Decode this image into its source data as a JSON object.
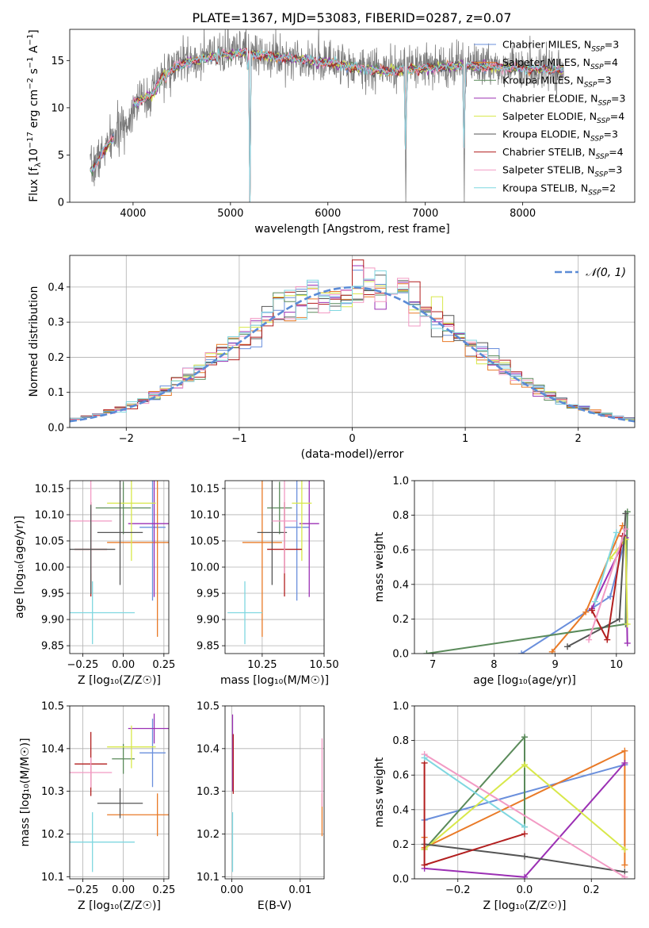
{
  "figure_title": "PLATE=1367, MJD=53083, FIBERID=0287, z=0.07",
  "colors": [
    "#6a8fdc",
    "#e97a27",
    "#5a8a5a",
    "#9b30b4",
    "#d8e84a",
    "#555555",
    "#b21e1e",
    "#f29ac4",
    "#7fd7e0"
  ],
  "chart_data": [
    {
      "id": "spectrum",
      "type": "line",
      "title": "PLATE=1367, MJD=53083, FIBERID=0287, z=0.07",
      "xlabel": "wavelength [Angstrom, rest frame]",
      "ylabel_main": "Flux [f",
      "ylabel_sub": "λ",
      "ylabel_mid": "10",
      "ylabel_sup1": "−17",
      "ylabel_rest1": " erg cm",
      "ylabel_sup2": "−2",
      "ylabel_rest2": " s",
      "ylabel_sup3": "−1",
      "ylabel_rest3": " A",
      "ylabel_sup4": "−1",
      "ylabel_end": "]",
      "xlim": [
        3350,
        9150
      ],
      "ylim": [
        0,
        18.3
      ],
      "xticks": [
        4000,
        5000,
        6000,
        7000,
        8000
      ],
      "yticks": [
        0,
        5,
        10,
        15
      ],
      "legend_position": "upper-right",
      "legend": [
        {
          "base": "Chabrier MILES, N",
          "sub": "SSP",
          "tail": "=3"
        },
        {
          "base": "Salpeter MILES, N",
          "sub": "SSP",
          "tail": "=4"
        },
        {
          "base": "Kroupa MILES, N",
          "sub": "SSP",
          "tail": "=3"
        },
        {
          "base": "Chabrier ELODIE, N",
          "sub": "SSP",
          "tail": "=3"
        },
        {
          "base": "Salpeter ELODIE, N",
          "sub": "SSP",
          "tail": "=4"
        },
        {
          "base": "Kroupa ELODIE, N",
          "sub": "SSP",
          "tail": "=3"
        },
        {
          "base": "Chabrier STELIB, N",
          "sub": "SSP",
          "tail": "=4"
        },
        {
          "base": "Salpeter STELIB, N",
          "sub": "SSP",
          "tail": "=3"
        },
        {
          "base": "Kroupa STELIB, N",
          "sub": "SSP",
          "tail": "=2"
        }
      ],
      "continuum_knots": [
        [
          3580,
          3.5
        ],
        [
          3700,
          5.5
        ],
        [
          3850,
          7.5
        ],
        [
          3950,
          8.5
        ],
        [
          4000,
          10.5
        ],
        [
          4200,
          11.5
        ],
        [
          4300,
          13.5
        ],
        [
          4500,
          14.8
        ],
        [
          4800,
          15.5
        ],
        [
          5100,
          16.0
        ],
        [
          5400,
          15.6
        ],
        [
          5700,
          15.3
        ],
        [
          6000,
          15.0
        ],
        [
          6300,
          14.3
        ],
        [
          6600,
          14.0
        ],
        [
          7000,
          14.3
        ],
        [
          7400,
          14.6
        ],
        [
          7800,
          14.4
        ],
        [
          8200,
          14.2
        ],
        [
          8400,
          14.1
        ]
      ],
      "data_xrange": [
        3560,
        8420
      ],
      "model_xranges": [
        [
          3560,
          3800
        ],
        [
          4000,
          8420
        ]
      ],
      "absorption_lines": [
        [
          3934,
          9.0
        ],
        [
          3969,
          9.0
        ],
        [
          4102,
          11.0
        ],
        [
          4340,
          12.5
        ],
        [
          4861,
          14.5
        ],
        [
          5175,
          14.0
        ],
        [
          5200,
          0.0
        ],
        [
          5890,
          14.0
        ],
        [
          6563,
          15.5
        ],
        [
          6800,
          0.0
        ],
        [
          7400,
          0.0
        ]
      ]
    },
    {
      "id": "residuals",
      "type": "histogram",
      "xlabel": "(data-model)/error",
      "ylabel": "Normed distribution",
      "xlim": [
        -2.5,
        2.5
      ],
      "ylim": [
        0,
        0.49
      ],
      "xticks": [
        -2,
        -1,
        0,
        1,
        2
      ],
      "yticks": [
        0.0,
        0.1,
        0.2,
        0.3,
        0.4
      ],
      "legend_position": "upper-right",
      "legend_label": "𝒩(0, 1)",
      "bin_width": 0.1,
      "normal_curve": {
        "mean": 0,
        "sigma": 1
      }
    },
    {
      "id": "age-vs-Z",
      "type": "errorbar",
      "xlabel": "Z [log₁₀(Z/Z☉)]",
      "ylabel": "age  [log₁₀(age/yr)]",
      "xlim": [
        -0.33,
        0.28
      ],
      "ylim": [
        9.835,
        10.165
      ],
      "xticks": [
        -0.25,
        0.0,
        0.25
      ],
      "xticklabels": [
        "−0.25",
        "0.00",
        "0.25"
      ],
      "yticks": [
        9.85,
        9.9,
        9.95,
        10.0,
        10.05,
        10.1,
        10.15
      ],
      "yticklabels": [
        "9.85",
        "9.90",
        "9.95",
        "10.00",
        "10.05",
        "10.10",
        "10.15"
      ],
      "points": [
        {
          "c": 0,
          "x": 0.18,
          "y": 10.076,
          "xerr": 0.08,
          "yerr": 0.14
        },
        {
          "c": 1,
          "x": 0.21,
          "y": 10.047,
          "xerr": 0.31,
          "yerr": 0.18
        },
        {
          "c": 2,
          "x": 0.0,
          "y": 10.113,
          "xerr": 0.17,
          "yerr": 0.05
        },
        {
          "c": 3,
          "x": 0.19,
          "y": 10.083,
          "xerr": 0.16,
          "yerr": 0.14
        },
        {
          "c": 4,
          "x": 0.05,
          "y": 10.122,
          "xerr": 0.15,
          "yerr": 0.11
        },
        {
          "c": 5,
          "x": -0.02,
          "y": 10.066,
          "xerr": 0.14,
          "yerr": 0.1
        },
        {
          "c": 6,
          "x": -0.2,
          "y": 10.034,
          "xerr": 0.1,
          "yerr": 0.09
        },
        {
          "c": 7,
          "x": -0.2,
          "y": 10.088,
          "xerr": 0.13,
          "yerr": 0.1
        },
        {
          "c": 5,
          "x": -0.2,
          "y": 10.034,
          "xerr": 0.15,
          "yerr": 0.085
        },
        {
          "c": 8,
          "x": -0.19,
          "y": 9.913,
          "xerr": 0.26,
          "yerr": 0.06
        }
      ]
    },
    {
      "id": "age-vs-mass",
      "type": "errorbar",
      "xlabel": "mass [log₁₀(M/M☉)]",
      "xlim": [
        10.1,
        10.5
      ],
      "ylim": [
        9.835,
        10.165
      ],
      "xticks": [
        10.25,
        10.5
      ],
      "xticklabels": [
        "10.25",
        "10.50"
      ],
      "yticks": [
        9.85,
        9.9,
        9.95,
        10.0,
        10.05,
        10.1,
        10.15
      ],
      "yticklabels": [
        "9.85",
        "9.90",
        "9.95",
        "10.00",
        "10.05",
        "10.10",
        "10.15"
      ],
      "points": [
        {
          "c": 0,
          "x": 10.39,
          "y": 10.076,
          "xerr": 0.05,
          "yerr": 0.14
        },
        {
          "c": 1,
          "x": 10.25,
          "y": 10.047,
          "xerr": 0.08,
          "yerr": 0.18
        },
        {
          "c": 2,
          "x": 10.32,
          "y": 10.113,
          "xerr": 0.05,
          "yerr": 0.05
        },
        {
          "c": 3,
          "x": 10.44,
          "y": 10.083,
          "xerr": 0.04,
          "yerr": 0.14
        },
        {
          "c": 4,
          "x": 10.41,
          "y": 10.122,
          "xerr": 0.04,
          "yerr": 0.11
        },
        {
          "c": 5,
          "x": 10.29,
          "y": 10.066,
          "xerr": 0.06,
          "yerr": 0.1
        },
        {
          "c": 6,
          "x": 10.34,
          "y": 10.034,
          "xerr": 0.07,
          "yerr": 0.09
        },
        {
          "c": 7,
          "x": 10.34,
          "y": 10.088,
          "xerr": 0.05,
          "yerr": 0.1
        },
        {
          "c": 8,
          "x": 10.18,
          "y": 9.913,
          "xerr": 0.07,
          "yerr": 0.06
        }
      ]
    },
    {
      "id": "weight-vs-age",
      "type": "line",
      "xlabel": "age  [log₁₀(age/yr)]",
      "ylabel": "mass weight",
      "xlim": [
        6.7,
        10.3
      ],
      "ylim": [
        0,
        1.0
      ],
      "xticks": [
        7,
        8,
        9,
        10
      ],
      "yticks": [
        0.0,
        0.2,
        0.4,
        0.6,
        0.8,
        1.0
      ],
      "yticklabels": [
        "0.0",
        "0.2",
        "0.4",
        "0.6",
        "0.8",
        "1.0"
      ],
      "series": [
        {
          "c": 0,
          "x": [
            8.45,
            9.9,
            10.15
          ],
          "y": [
            0.0,
            0.33,
            0.67
          ]
        },
        {
          "c": 1,
          "x": [
            8.95,
            9.5,
            10.1
          ],
          "y": [
            0.01,
            0.24,
            0.74
          ]
        },
        {
          "c": 2,
          "x": [
            6.9,
            10.15,
            10.18
          ],
          "y": [
            0.0,
            0.17,
            0.82
          ]
        },
        {
          "c": 3,
          "x": [
            9.6,
            10.15,
            10.18
          ],
          "y": [
            0.26,
            0.67,
            0.06
          ]
        },
        {
          "c": 4,
          "x": [
            9.9,
            10.15,
            10.18
          ],
          "y": [
            0.55,
            0.66,
            0.17
          ]
        },
        {
          "c": 5,
          "x": [
            9.2,
            10.05,
            10.15
          ],
          "y": [
            0.04,
            0.2,
            0.81
          ]
        },
        {
          "c": 6,
          "x": [
            9.6,
            9.85,
            10.1
          ],
          "y": [
            0.25,
            0.08,
            0.68
          ]
        },
        {
          "c": 7,
          "x": [
            9.55,
            10.15
          ],
          "y": [
            0.08,
            0.72
          ]
        },
        {
          "c": 8,
          "x": [
            9.65,
            10.0
          ],
          "y": [
            0.3,
            0.7
          ]
        }
      ]
    },
    {
      "id": "mass-vs-Z",
      "type": "errorbar",
      "xlabel": "Z [log₁₀(Z/Z☉)]",
      "ylabel": "mass [log₁₀(M/M☉)]",
      "xlim": [
        -0.33,
        0.28
      ],
      "ylim": [
        10.095,
        10.5
      ],
      "xticks": [
        -0.25,
        0.0,
        0.25
      ],
      "xticklabels": [
        "−0.25",
        "0.00",
        "0.25"
      ],
      "yticks": [
        10.1,
        10.2,
        10.3,
        10.4,
        10.5
      ],
      "yticklabels": [
        "10.1",
        "10.2",
        "10.3",
        "10.4",
        "10.5"
      ],
      "points": [
        {
          "c": 0,
          "x": 0.18,
          "y": 10.39,
          "xerr": 0.08,
          "yerr": 0.08
        },
        {
          "c": 1,
          "x": 0.21,
          "y": 10.245,
          "xerr": 0.31,
          "yerr": 0.05
        },
        {
          "c": 2,
          "x": 0.0,
          "y": 10.376,
          "xerr": 0.07,
          "yerr": 0.035
        },
        {
          "c": 3,
          "x": 0.19,
          "y": 10.447,
          "xerr": 0.16,
          "yerr": 0.035
        },
        {
          "c": 4,
          "x": 0.05,
          "y": 10.404,
          "xerr": 0.15,
          "yerr": 0.05
        },
        {
          "c": 5,
          "x": -0.02,
          "y": 10.272,
          "xerr": 0.14,
          "yerr": 0.035
        },
        {
          "c": 6,
          "x": -0.2,
          "y": 10.364,
          "xerr": 0.1,
          "yerr": 0.075
        },
        {
          "c": 7,
          "x": -0.2,
          "y": 10.344,
          "xerr": 0.13,
          "yerr": 0.035
        },
        {
          "c": 8,
          "x": -0.19,
          "y": 10.181,
          "xerr": 0.26,
          "yerr": 0.07
        }
      ]
    },
    {
      "id": "mass-vs-EBV",
      "type": "errorbar",
      "xlabel": "E(B-V)",
      "xlim": [
        -0.001,
        0.0135
      ],
      "ylim": [
        10.095,
        10.5
      ],
      "xticks": [
        0.0,
        0.01
      ],
      "xticklabels": [
        "0.00",
        "0.01"
      ],
      "yticks": [
        10.1,
        10.2,
        10.3,
        10.4,
        10.5
      ],
      "yticklabels": [
        "10.1",
        "10.2",
        "10.3",
        "10.4",
        "10.5"
      ],
      "points": [
        {
          "c": 3,
          "x": 0.0001,
          "y": 10.39,
          "xerr": 0.0,
          "yerr": 0.09
        },
        {
          "c": 6,
          "x": 0.0002,
          "y": 10.364,
          "xerr": 0.0,
          "yerr": 0.07
        },
        {
          "c": 8,
          "x": 0.0001,
          "y": 10.181,
          "xerr": 0.0,
          "yerr": 0.07
        },
        {
          "c": 1,
          "x": 0.0132,
          "y": 10.245,
          "xerr": 0.0,
          "yerr": 0.05
        },
        {
          "c": 7,
          "x": 0.0132,
          "y": 10.344,
          "xerr": 0.0,
          "yerr": 0.08
        }
      ]
    },
    {
      "id": "weight-vs-Z",
      "type": "line",
      "xlabel": "Z [log₁₀(Z/Z☉)]",
      "ylabel": "mass weight",
      "xlim": [
        -0.33,
        0.33
      ],
      "ylim": [
        0,
        1.0
      ],
      "xticks": [
        -0.2,
        0.0,
        0.2
      ],
      "xticklabels": [
        "−0.2",
        "0.0",
        "0.2"
      ],
      "yticks": [
        0.0,
        0.2,
        0.4,
        0.6,
        0.8,
        1.0
      ],
      "yticklabels": [
        "0.0",
        "0.2",
        "0.4",
        "0.6",
        "0.8",
        "1.0"
      ],
      "series": [
        {
          "c": 0,
          "x": [
            -0.3,
            0.3
          ],
          "y": [
            0.34,
            0.66
          ]
        },
        {
          "c": 1,
          "x": [
            -0.3,
            -0.3,
            0.3,
            0.3
          ],
          "y": [
            0.24,
            0.18,
            0.74,
            0.08
          ]
        },
        {
          "c": 2,
          "x": [
            -0.3,
            0.0,
            0.0
          ],
          "y": [
            0.17,
            0.82,
            0.3
          ]
        },
        {
          "c": 3,
          "x": [
            -0.3,
            0.0,
            0.3
          ],
          "y": [
            0.06,
            0.01,
            0.67
          ]
        },
        {
          "c": 4,
          "x": [
            -0.3,
            0.0,
            0.3
          ],
          "y": [
            0.17,
            0.66,
            0.17
          ]
        },
        {
          "c": 5,
          "x": [
            -0.3,
            0.0,
            0.3
          ],
          "y": [
            0.2,
            0.13,
            0.04
          ]
        },
        {
          "c": 6,
          "x": [
            -0.3,
            -0.3,
            0.0
          ],
          "y": [
            0.67,
            0.08,
            0.26
          ]
        },
        {
          "c": 7,
          "x": [
            -0.3,
            0.3
          ],
          "y": [
            0.72,
            0.01
          ]
        },
        {
          "c": 8,
          "x": [
            -0.3,
            0.0
          ],
          "y": [
            0.7,
            0.3
          ]
        }
      ]
    }
  ]
}
